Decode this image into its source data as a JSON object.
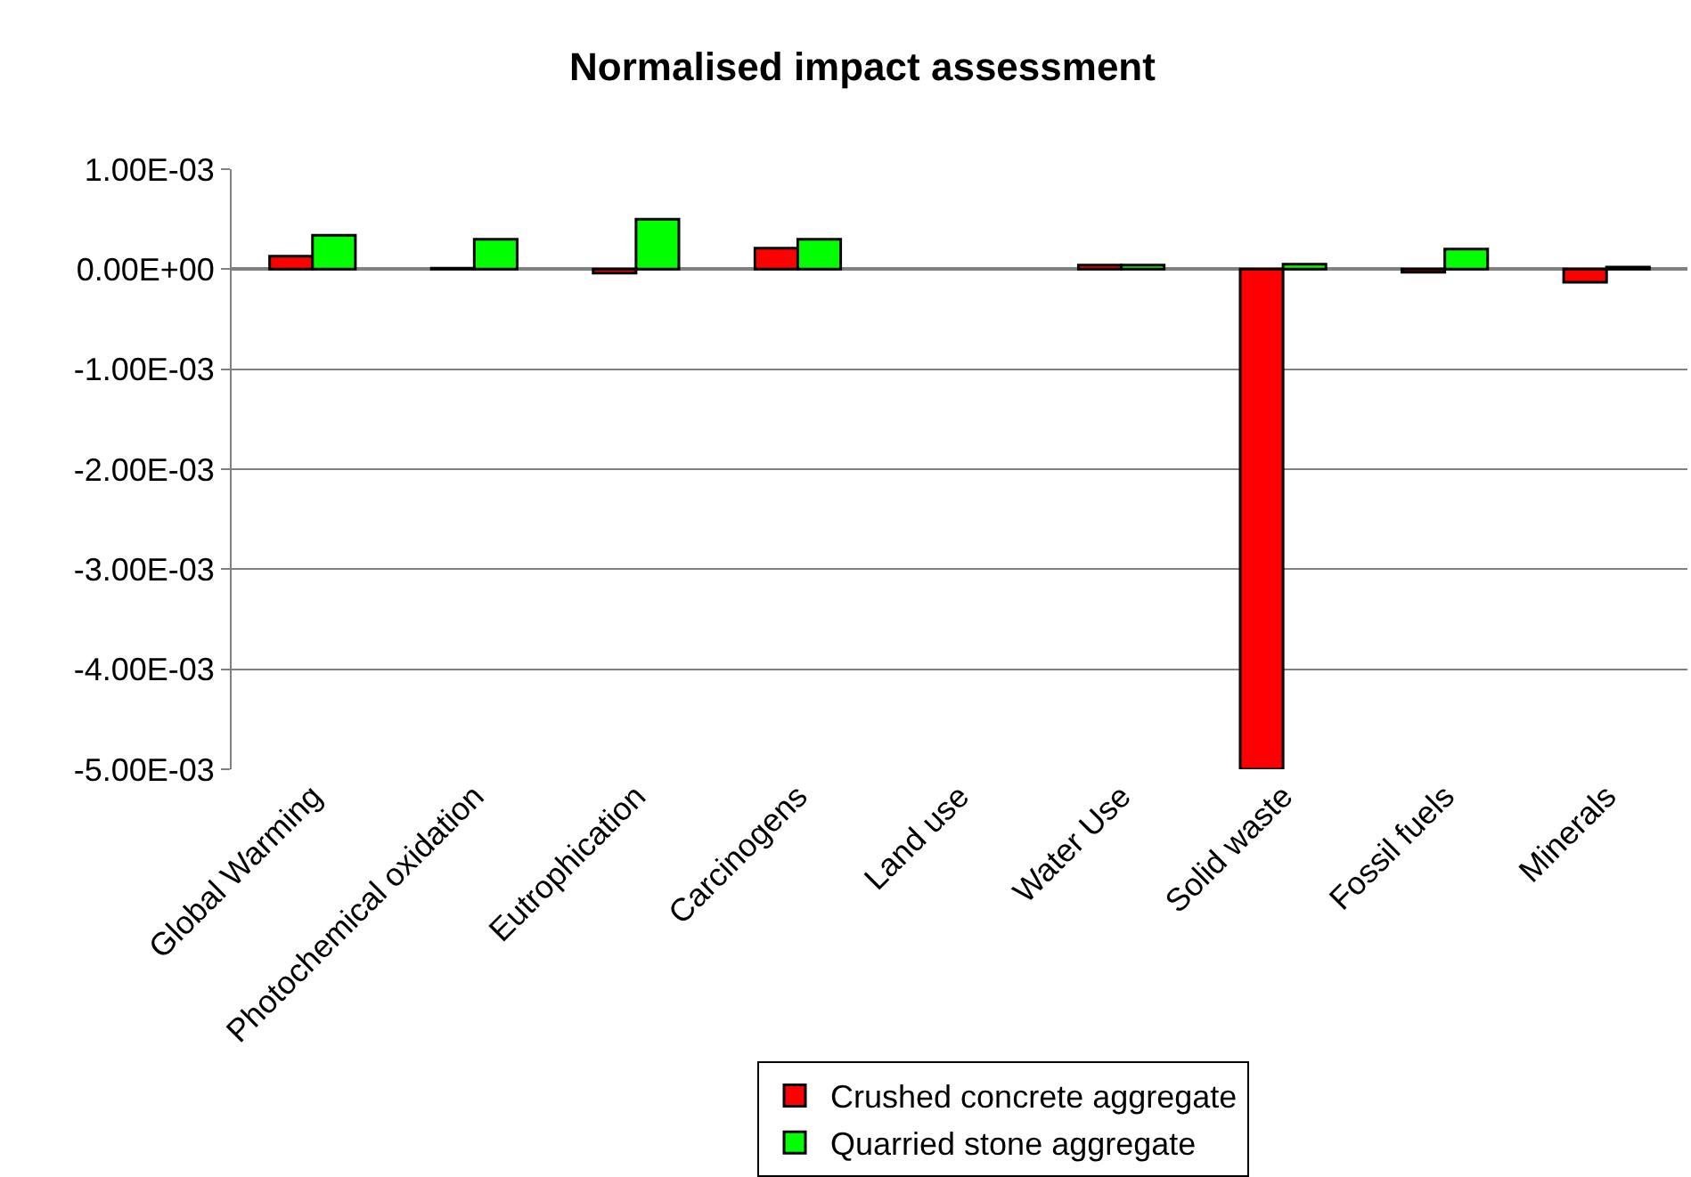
{
  "chart_data": {
    "type": "bar",
    "title": "Normalised impact assessment",
    "categories": [
      "Global Warming",
      "Photochemical oxidation",
      "Eutrophication",
      "Carcinogens",
      "Land use",
      "Water Use",
      "Solid waste",
      "Fossil fuels",
      "Minerals"
    ],
    "series": [
      {
        "name": "Crushed concrete aggregate",
        "color": "#ff0000",
        "values": [
          0.00013,
          1e-05,
          -4e-05,
          0.00021,
          null,
          4e-05,
          -0.005,
          -3e-05,
          -0.00013
        ]
      },
      {
        "name": "Quarried stone aggregate",
        "color": "#00ff00",
        "values": [
          0.00034,
          0.0003,
          0.0005,
          0.0003,
          null,
          4e-05,
          5e-05,
          0.0002,
          2e-05
        ]
      }
    ],
    "ylim": [
      -0.005,
      0.001
    ],
    "yticks": [
      {
        "value": 0.001,
        "label": "1.00E-03"
      },
      {
        "value": 0,
        "label": "0.00E+00"
      },
      {
        "value": -0.001,
        "label": "-1.00E-03"
      },
      {
        "value": -0.002,
        "label": "-2.00E-03"
      },
      {
        "value": -0.003,
        "label": "-3.00E-03"
      },
      {
        "value": -0.004,
        "label": "-4.00E-03"
      },
      {
        "value": -0.005,
        "label": "-5.00E-03"
      }
    ],
    "grid": "y",
    "legend": "bottom"
  }
}
